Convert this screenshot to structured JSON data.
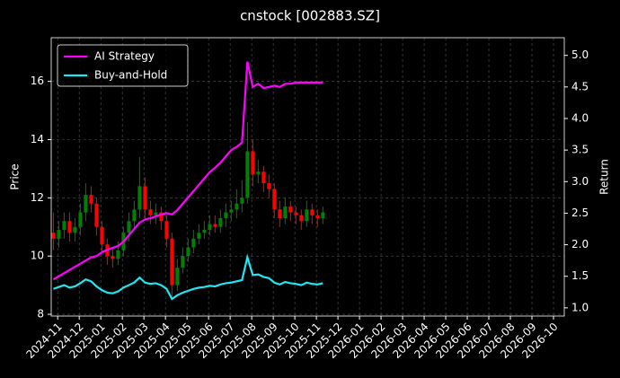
{
  "chart_data": {
    "type": "candlestick",
    "title": "cnstock [002883.SZ]",
    "ylabel": "Price",
    "y2label": "Return",
    "grid": true,
    "legend_position": "upper left",
    "up_color": "green",
    "down_color": "red",
    "x": [
      -0.2,
      0.05,
      0.3,
      0.55,
      0.8,
      1.05,
      1.3,
      1.55,
      1.8,
      2.05,
      2.3,
      2.55,
      2.8,
      3.05,
      3.3,
      3.55,
      3.8,
      4.05,
      4.3,
      4.55,
      4.8,
      5.05,
      5.3,
      5.55,
      5.8,
      6.05,
      6.3,
      6.55,
      6.8,
      7.05,
      7.3,
      7.55,
      7.8,
      8.05,
      8.3,
      8.55,
      8.8,
      9.05,
      9.3,
      9.55,
      9.8,
      10.05,
      10.3,
      10.55,
      10.8,
      11.05,
      11.3,
      11.55,
      11.8,
      12.05,
      12.3
    ],
    "open": [
      10.8,
      10.6,
      10.9,
      11.2,
      10.8,
      11.0,
      11.5,
      12.1,
      11.8,
      11.0,
      10.4,
      10.0,
      9.9,
      10.2,
      10.8,
      11.2,
      11.6,
      12.4,
      11.6,
      11.4,
      11.5,
      11.2,
      10.6,
      9.0,
      9.6,
      10.0,
      10.3,
      10.6,
      10.8,
      10.9,
      11.1,
      11.0,
      11.3,
      11.5,
      11.6,
      11.8,
      12.0,
      13.6,
      12.8,
      12.9,
      12.5,
      12.3,
      11.6,
      11.3,
      11.7,
      11.5,
      11.4,
      11.2,
      11.6,
      11.4,
      11.3
    ],
    "high": [
      11.5,
      11.2,
      11.5,
      11.5,
      11.3,
      11.8,
      12.5,
      12.4,
      12.0,
      11.2,
      10.6,
      10.3,
      10.5,
      11.0,
      11.5,
      11.9,
      13.4,
      12.7,
      11.9,
      11.8,
      11.7,
      11.4,
      10.8,
      9.9,
      10.3,
      10.6,
      10.9,
      11.1,
      11.2,
      11.4,
      11.4,
      11.6,
      11.8,
      11.9,
      12.3,
      12.6,
      14.6,
      14.0,
      13.3,
      13.1,
      12.8,
      12.5,
      11.9,
      12.0,
      11.9,
      11.7,
      11.6,
      11.9,
      11.8,
      11.6,
      11.7
    ],
    "low": [
      10.2,
      10.3,
      10.6,
      10.5,
      10.5,
      10.7,
      11.2,
      11.5,
      10.7,
      10.1,
      9.7,
      9.6,
      9.7,
      10.0,
      10.5,
      10.9,
      11.3,
      11.3,
      11.1,
      11.1,
      10.9,
      10.3,
      8.6,
      8.8,
      9.4,
      9.8,
      10.1,
      10.4,
      10.6,
      10.7,
      10.8,
      10.8,
      11.0,
      11.2,
      11.3,
      11.5,
      11.8,
      12.4,
      12.5,
      12.2,
      12.0,
      11.3,
      11.0,
      11.1,
      11.2,
      11.1,
      10.9,
      11.0,
      11.1,
      11.0,
      11.1
    ],
    "close": [
      10.6,
      10.9,
      11.2,
      10.8,
      11.0,
      11.5,
      12.1,
      11.8,
      11.0,
      10.4,
      10.0,
      9.9,
      10.2,
      10.8,
      11.2,
      11.6,
      12.4,
      11.6,
      11.4,
      11.5,
      11.2,
      10.6,
      9.0,
      9.6,
      10.0,
      10.3,
      10.6,
      10.8,
      10.9,
      11.1,
      11.0,
      11.3,
      11.5,
      11.6,
      11.8,
      12.0,
      13.6,
      12.8,
      12.9,
      12.5,
      12.3,
      11.6,
      11.3,
      11.7,
      11.5,
      11.4,
      11.2,
      11.6,
      11.4,
      11.3,
      11.5
    ],
    "series": [
      {
        "name": "AI Strategy",
        "color": "#ff00ff",
        "axis": "y2",
        "values": [
          1.45,
          1.5,
          1.55,
          1.6,
          1.65,
          1.7,
          1.75,
          1.8,
          1.82,
          1.88,
          1.92,
          1.95,
          1.98,
          2.05,
          2.15,
          2.25,
          2.35,
          2.4,
          2.42,
          2.45,
          2.48,
          2.5,
          2.48,
          2.55,
          2.65,
          2.75,
          2.85,
          2.95,
          3.05,
          3.15,
          3.22,
          3.3,
          3.4,
          3.5,
          3.55,
          3.62,
          4.9,
          4.5,
          4.55,
          4.48,
          4.5,
          4.52,
          4.5,
          4.55,
          4.55,
          4.57,
          4.57,
          4.57,
          4.57,
          4.57,
          4.57
        ]
      },
      {
        "name": "Buy-and-Hold",
        "color": "#22e5f0",
        "axis": "y2",
        "values": [
          1.3,
          1.33,
          1.36,
          1.32,
          1.34,
          1.39,
          1.45,
          1.42,
          1.34,
          1.28,
          1.24,
          1.23,
          1.26,
          1.32,
          1.36,
          1.4,
          1.48,
          1.4,
          1.38,
          1.39,
          1.36,
          1.3,
          1.14,
          1.2,
          1.24,
          1.27,
          1.3,
          1.32,
          1.33,
          1.35,
          1.34,
          1.37,
          1.39,
          1.4,
          1.42,
          1.44,
          1.8,
          1.52,
          1.53,
          1.49,
          1.47,
          1.4,
          1.37,
          1.41,
          1.39,
          1.38,
          1.36,
          1.4,
          1.38,
          1.37,
          1.39
        ]
      }
    ],
    "xlim": [
      -0.3,
      23.5
    ],
    "xticks": [
      {
        "value": 0,
        "label": "2024-11"
      },
      {
        "value": 1,
        "label": "2024-12"
      },
      {
        "value": 2,
        "label": "2025-01"
      },
      {
        "value": 3,
        "label": "2025-02"
      },
      {
        "value": 4,
        "label": "2025-03"
      },
      {
        "value": 5,
        "label": "2025-04"
      },
      {
        "value": 6,
        "label": "2025-05"
      },
      {
        "value": 7,
        "label": "2025-06"
      },
      {
        "value": 8,
        "label": "2025-07"
      },
      {
        "value": 9,
        "label": "2025-08"
      },
      {
        "value": 10,
        "label": "2025-09"
      },
      {
        "value": 11,
        "label": "2025-10"
      },
      {
        "value": 12,
        "label": "2025-11"
      },
      {
        "value": 13,
        "label": "2025-12"
      },
      {
        "value": 14,
        "label": "2026-01"
      },
      {
        "value": 15,
        "label": "2026-02"
      },
      {
        "value": 16,
        "label": "2026-03"
      },
      {
        "value": 17,
        "label": "2026-04"
      },
      {
        "value": 18,
        "label": "2026-05"
      },
      {
        "value": 19,
        "label": "2026-06"
      },
      {
        "value": 20,
        "label": "2026-07"
      },
      {
        "value": 21,
        "label": "2026-08"
      },
      {
        "value": 22,
        "label": "2026-09"
      },
      {
        "value": 23,
        "label": "2026-10"
      }
    ],
    "ylim": [
      7.94,
      17.5
    ],
    "yticks": [
      8,
      10,
      12,
      14,
      16
    ],
    "y2lim": [
      0.87,
      5.28
    ],
    "y2ticks": [
      {
        "value": 1,
        "label": "1.0"
      },
      1.5,
      {
        "value": 2,
        "label": "2.0"
      },
      2.5,
      {
        "value": 3,
        "label": "3.0"
      },
      3.5,
      {
        "value": 4,
        "label": "4.0"
      },
      4.5,
      {
        "value": 5,
        "label": "5.0"
      }
    ]
  }
}
